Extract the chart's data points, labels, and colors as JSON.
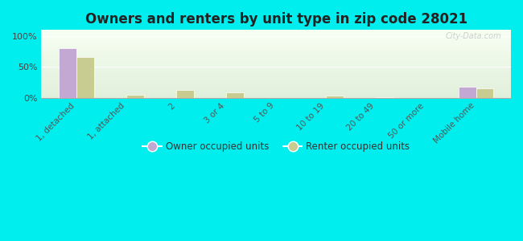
{
  "title": "Owners and renters by unit type in zip code 28021",
  "categories": [
    "1, detached",
    "1, attached",
    "2",
    "3 or 4",
    "5 to 9",
    "10 to 19",
    "20 to 49",
    "50 or more",
    "Mobile home"
  ],
  "owner_values": [
    80,
    0,
    0,
    0,
    0,
    0,
    0,
    0,
    18
  ],
  "renter_values": [
    66,
    5,
    12,
    8,
    0,
    3,
    1,
    0,
    15
  ],
  "owner_color": "#c4a8d4",
  "renter_color": "#c8cc90",
  "bg_color_top_left": "#f0fae8",
  "bg_color_bottom_right": "#d8edd8",
  "outer_bg": "#00eeee",
  "yticks": [
    0,
    50,
    100
  ],
  "ytick_labels": [
    "0%",
    "50%",
    "100%"
  ],
  "watermark": "City-Data.com",
  "legend_owner": "Owner occupied units",
  "legend_renter": "Renter occupied units",
  "bar_width": 0.35
}
